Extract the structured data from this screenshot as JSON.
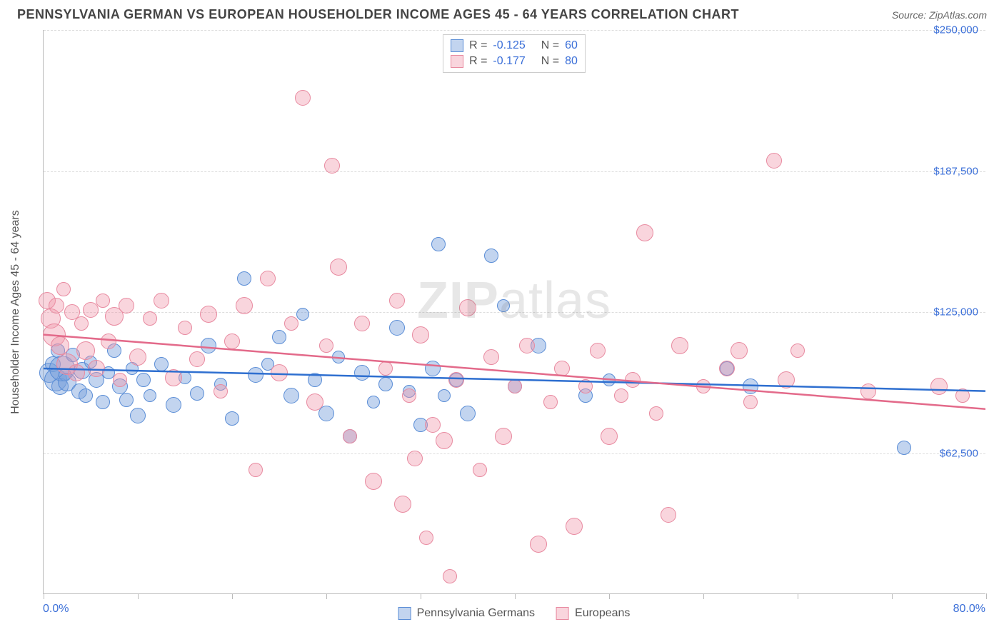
{
  "title": "PENNSYLVANIA GERMAN VS EUROPEAN HOUSEHOLDER INCOME AGES 45 - 64 YEARS CORRELATION CHART",
  "source_label": "Source: ",
  "source_value": "ZipAtlas.com",
  "y_axis_title": "Householder Income Ages 45 - 64 years",
  "watermark": {
    "part1": "ZIP",
    "part2": "atlas"
  },
  "chart": {
    "type": "scatter",
    "xlim": [
      0,
      80
    ],
    "ylim": [
      0,
      250000
    ],
    "x_start_label": "0.0%",
    "x_end_label": "80.0%",
    "x_ticks": [
      0,
      8,
      16,
      24,
      32,
      40,
      48,
      56,
      64,
      72,
      80
    ],
    "y_ticks": [
      {
        "v": 62500,
        "label": "$62,500"
      },
      {
        "v": 125000,
        "label": "$125,000"
      },
      {
        "v": 187500,
        "label": "$187,500"
      },
      {
        "v": 250000,
        "label": "$250,000"
      }
    ],
    "grid_color": "#dddddd",
    "background_color": "#ffffff",
    "axis_color": "#bbbbbb",
    "tick_label_color": "#3b6fd8",
    "series": [
      {
        "name": "Pennsylvania Germans",
        "fill": "rgba(120,160,220,0.45)",
        "stroke": "#5a8dd6",
        "trend_color": "#2e6fd0",
        "trend": {
          "y_at_x0": 100000,
          "y_at_xmax": 90000
        },
        "R": "-0.125",
        "N": "60",
        "points": [
          {
            "x": 0.5,
            "y": 98000,
            "r": 14
          },
          {
            "x": 0.8,
            "y": 102000,
            "r": 11
          },
          {
            "x": 1.0,
            "y": 95000,
            "r": 16
          },
          {
            "x": 1.2,
            "y": 108000,
            "r": 10
          },
          {
            "x": 1.4,
            "y": 92000,
            "r": 12
          },
          {
            "x": 1.6,
            "y": 100000,
            "r": 18
          },
          {
            "x": 1.8,
            "y": 97000,
            "r": 9
          },
          {
            "x": 2.0,
            "y": 94000,
            "r": 13
          },
          {
            "x": 2.5,
            "y": 106000,
            "r": 10
          },
          {
            "x": 3.0,
            "y": 90000,
            "r": 11
          },
          {
            "x": 3.3,
            "y": 99000,
            "r": 12
          },
          {
            "x": 3.6,
            "y": 88000,
            "r": 10
          },
          {
            "x": 4.0,
            "y": 103000,
            "r": 9
          },
          {
            "x": 4.5,
            "y": 95000,
            "r": 11
          },
          {
            "x": 5.0,
            "y": 85000,
            "r": 10
          },
          {
            "x": 5.5,
            "y": 98000,
            "r": 9
          },
          {
            "x": 6.0,
            "y": 108000,
            "r": 10
          },
          {
            "x": 6.5,
            "y": 92000,
            "r": 11
          },
          {
            "x": 7.0,
            "y": 86000,
            "r": 10
          },
          {
            "x": 7.5,
            "y": 100000,
            "r": 9
          },
          {
            "x": 8.0,
            "y": 79000,
            "r": 11
          },
          {
            "x": 8.5,
            "y": 95000,
            "r": 10
          },
          {
            "x": 9.0,
            "y": 88000,
            "r": 9
          },
          {
            "x": 10.0,
            "y": 102000,
            "r": 10
          },
          {
            "x": 11.0,
            "y": 84000,
            "r": 11
          },
          {
            "x": 12.0,
            "y": 96000,
            "r": 9
          },
          {
            "x": 13.0,
            "y": 89000,
            "r": 10
          },
          {
            "x": 14.0,
            "y": 110000,
            "r": 11
          },
          {
            "x": 15.0,
            "y": 93000,
            "r": 9
          },
          {
            "x": 16.0,
            "y": 78000,
            "r": 10
          },
          {
            "x": 17.0,
            "y": 140000,
            "r": 10
          },
          {
            "x": 18.0,
            "y": 97000,
            "r": 11
          },
          {
            "x": 19.0,
            "y": 102000,
            "r": 9
          },
          {
            "x": 20.0,
            "y": 114000,
            "r": 10
          },
          {
            "x": 21.0,
            "y": 88000,
            "r": 11
          },
          {
            "x": 22.0,
            "y": 124000,
            "r": 9
          },
          {
            "x": 23.0,
            "y": 95000,
            "r": 10
          },
          {
            "x": 24.0,
            "y": 80000,
            "r": 11
          },
          {
            "x": 25.0,
            "y": 105000,
            "r": 9
          },
          {
            "x": 26.0,
            "y": 70000,
            "r": 10
          },
          {
            "x": 27.0,
            "y": 98000,
            "r": 11
          },
          {
            "x": 28.0,
            "y": 85000,
            "r": 9
          },
          {
            "x": 29.0,
            "y": 93000,
            "r": 10
          },
          {
            "x": 30.0,
            "y": 118000,
            "r": 11
          },
          {
            "x": 31.0,
            "y": 90000,
            "r": 9
          },
          {
            "x": 32.0,
            "y": 75000,
            "r": 10
          },
          {
            "x": 33.0,
            "y": 100000,
            "r": 11
          },
          {
            "x": 33.5,
            "y": 155000,
            "r": 10
          },
          {
            "x": 34.0,
            "y": 88000,
            "r": 9
          },
          {
            "x": 35.0,
            "y": 95000,
            "r": 10
          },
          {
            "x": 36.0,
            "y": 80000,
            "r": 11
          },
          {
            "x": 38.0,
            "y": 150000,
            "r": 10
          },
          {
            "x": 39.0,
            "y": 128000,
            "r": 9
          },
          {
            "x": 40.0,
            "y": 92000,
            "r": 10
          },
          {
            "x": 42.0,
            "y": 110000,
            "r": 11
          },
          {
            "x": 46.0,
            "y": 88000,
            "r": 10
          },
          {
            "x": 48.0,
            "y": 95000,
            "r": 9
          },
          {
            "x": 58.0,
            "y": 100000,
            "r": 10
          },
          {
            "x": 60.0,
            "y": 92000,
            "r": 11
          },
          {
            "x": 73.0,
            "y": 65000,
            "r": 10
          }
        ]
      },
      {
        "name": "Europeans",
        "fill": "rgba(240,150,170,0.40)",
        "stroke": "#e88aa0",
        "trend_color": "#e36a8a",
        "trend": {
          "y_at_x0": 115000,
          "y_at_xmax": 82000
        },
        "R": "-0.177",
        "N": "80",
        "points": [
          {
            "x": 0.3,
            "y": 130000,
            "r": 12
          },
          {
            "x": 0.6,
            "y": 122000,
            "r": 14
          },
          {
            "x": 0.9,
            "y": 115000,
            "r": 16
          },
          {
            "x": 1.1,
            "y": 128000,
            "r": 11
          },
          {
            "x": 1.4,
            "y": 110000,
            "r": 13
          },
          {
            "x": 1.7,
            "y": 135000,
            "r": 10
          },
          {
            "x": 2.0,
            "y": 102000,
            "r": 15
          },
          {
            "x": 2.4,
            "y": 125000,
            "r": 11
          },
          {
            "x": 2.8,
            "y": 98000,
            "r": 12
          },
          {
            "x": 3.2,
            "y": 120000,
            "r": 10
          },
          {
            "x": 3.6,
            "y": 108000,
            "r": 13
          },
          {
            "x": 4.0,
            "y": 126000,
            "r": 11
          },
          {
            "x": 4.5,
            "y": 100000,
            "r": 12
          },
          {
            "x": 5.0,
            "y": 130000,
            "r": 10
          },
          {
            "x": 5.5,
            "y": 112000,
            "r": 11
          },
          {
            "x": 6.0,
            "y": 123000,
            "r": 13
          },
          {
            "x": 6.5,
            "y": 95000,
            "r": 10
          },
          {
            "x": 7.0,
            "y": 128000,
            "r": 11
          },
          {
            "x": 8.0,
            "y": 105000,
            "r": 12
          },
          {
            "x": 9.0,
            "y": 122000,
            "r": 10
          },
          {
            "x": 10.0,
            "y": 130000,
            "r": 11
          },
          {
            "x": 11.0,
            "y": 96000,
            "r": 12
          },
          {
            "x": 12.0,
            "y": 118000,
            "r": 10
          },
          {
            "x": 13.0,
            "y": 104000,
            "r": 11
          },
          {
            "x": 14.0,
            "y": 124000,
            "r": 12
          },
          {
            "x": 15.0,
            "y": 90000,
            "r": 10
          },
          {
            "x": 16.0,
            "y": 112000,
            "r": 11
          },
          {
            "x": 17.0,
            "y": 128000,
            "r": 12
          },
          {
            "x": 18.0,
            "y": 55000,
            "r": 10
          },
          {
            "x": 19.0,
            "y": 140000,
            "r": 11
          },
          {
            "x": 20.0,
            "y": 98000,
            "r": 12
          },
          {
            "x": 21.0,
            "y": 120000,
            "r": 10
          },
          {
            "x": 22.0,
            "y": 220000,
            "r": 11
          },
          {
            "x": 23.0,
            "y": 85000,
            "r": 12
          },
          {
            "x": 24.0,
            "y": 110000,
            "r": 10
          },
          {
            "x": 24.5,
            "y": 190000,
            "r": 11
          },
          {
            "x": 25.0,
            "y": 145000,
            "r": 12
          },
          {
            "x": 26.0,
            "y": 70000,
            "r": 10
          },
          {
            "x": 27.0,
            "y": 120000,
            "r": 11
          },
          {
            "x": 28.0,
            "y": 50000,
            "r": 12
          },
          {
            "x": 29.0,
            "y": 100000,
            "r": 10
          },
          {
            "x": 30.0,
            "y": 130000,
            "r": 11
          },
          {
            "x": 30.5,
            "y": 40000,
            "r": 12
          },
          {
            "x": 31.0,
            "y": 88000,
            "r": 10
          },
          {
            "x": 31.5,
            "y": 60000,
            "r": 11
          },
          {
            "x": 32.0,
            "y": 115000,
            "r": 12
          },
          {
            "x": 32.5,
            "y": 25000,
            "r": 10
          },
          {
            "x": 33.0,
            "y": 75000,
            "r": 11
          },
          {
            "x": 34.0,
            "y": 68000,
            "r": 12
          },
          {
            "x": 34.5,
            "y": 8000,
            "r": 10
          },
          {
            "x": 35.0,
            "y": 95000,
            "r": 11
          },
          {
            "x": 36.0,
            "y": 127000,
            "r": 12
          },
          {
            "x": 37.0,
            "y": 55000,
            "r": 10
          },
          {
            "x": 38.0,
            "y": 105000,
            "r": 11
          },
          {
            "x": 39.0,
            "y": 70000,
            "r": 12
          },
          {
            "x": 40.0,
            "y": 92000,
            "r": 10
          },
          {
            "x": 41.0,
            "y": 110000,
            "r": 11
          },
          {
            "x": 42.0,
            "y": 22000,
            "r": 12
          },
          {
            "x": 43.0,
            "y": 85000,
            "r": 10
          },
          {
            "x": 44.0,
            "y": 100000,
            "r": 11
          },
          {
            "x": 45.0,
            "y": 30000,
            "r": 12
          },
          {
            "x": 46.0,
            "y": 92000,
            "r": 10
          },
          {
            "x": 47.0,
            "y": 108000,
            "r": 11
          },
          {
            "x": 48.0,
            "y": 70000,
            "r": 12
          },
          {
            "x": 49.0,
            "y": 88000,
            "r": 10
          },
          {
            "x": 50.0,
            "y": 95000,
            "r": 11
          },
          {
            "x": 51.0,
            "y": 160000,
            "r": 12
          },
          {
            "x": 52.0,
            "y": 80000,
            "r": 10
          },
          {
            "x": 53.0,
            "y": 35000,
            "r": 11
          },
          {
            "x": 54.0,
            "y": 110000,
            "r": 12
          },
          {
            "x": 56.0,
            "y": 92000,
            "r": 10
          },
          {
            "x": 58.0,
            "y": 100000,
            "r": 11
          },
          {
            "x": 59.0,
            "y": 108000,
            "r": 12
          },
          {
            "x": 60.0,
            "y": 85000,
            "r": 10
          },
          {
            "x": 62.0,
            "y": 192000,
            "r": 11
          },
          {
            "x": 63.0,
            "y": 95000,
            "r": 12
          },
          {
            "x": 64.0,
            "y": 108000,
            "r": 10
          },
          {
            "x": 70.0,
            "y": 90000,
            "r": 11
          },
          {
            "x": 76.0,
            "y": 92000,
            "r": 12
          },
          {
            "x": 78.0,
            "y": 88000,
            "r": 10
          }
        ]
      }
    ]
  },
  "legend_labels": {
    "R": "R =",
    "N": "N ="
  }
}
